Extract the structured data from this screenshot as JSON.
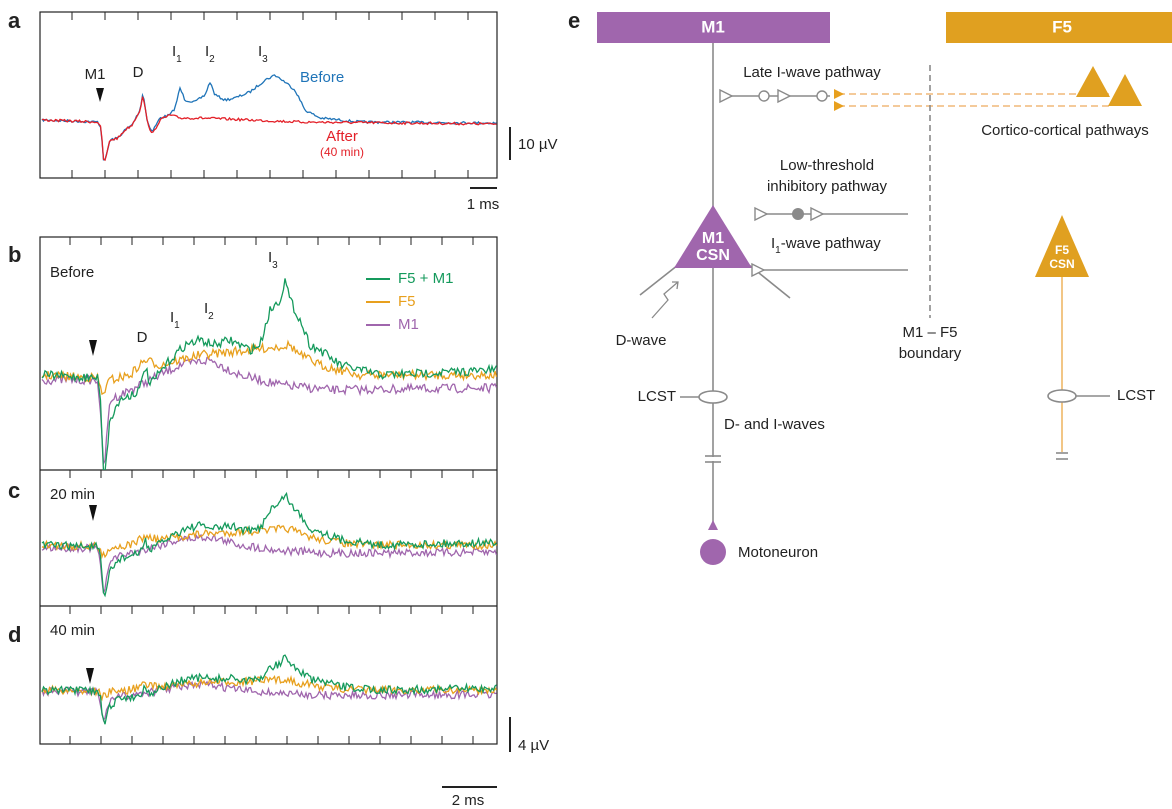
{
  "panels": [
    {
      "label": "a",
      "stimulus": "M1",
      "peaks": [
        {
          "text": "D"
        },
        {
          "text": "I",
          "sub": "1"
        },
        {
          "text": "I",
          "sub": "2"
        },
        {
          "text": "I",
          "sub": "3"
        }
      ],
      "traces": [
        {
          "name": "Before",
          "color": "#1f74b8"
        },
        {
          "name": "After",
          "note": "(40 min)",
          "color": "#e32028"
        }
      ],
      "scale_y": "10 µV",
      "scale_x": "1 ms"
    },
    {
      "label": "b",
      "condition": "Before",
      "peaks": [
        {
          "text": "D"
        },
        {
          "text": "I",
          "sub": "1"
        },
        {
          "text": "I",
          "sub": "2"
        },
        {
          "text": "I",
          "sub": "3"
        }
      ],
      "legend": [
        {
          "name": "F5 + M1",
          "color": "#159a5c"
        },
        {
          "name": "F5",
          "color": "#e8a01e"
        },
        {
          "name": "M1",
          "color": "#a066ad"
        }
      ]
    },
    {
      "label": "c",
      "condition": "20 min"
    },
    {
      "label": "d",
      "condition": "40 min",
      "scale_y": "4 µV",
      "scale_x": "2 ms"
    },
    {
      "label": "e",
      "regions": [
        "M1",
        "F5"
      ],
      "neurons": [
        {
          "line1": "M1",
          "line2": "CSN"
        },
        {
          "line1": "F5",
          "line2": "CSN"
        }
      ],
      "late_pathway": "Late I-wave pathway",
      "cortico": "Cortico-cortical pathways",
      "inhibitory": [
        "Low-threshold",
        "inhibitory pathway"
      ],
      "i1_pathway": {
        "text": "I",
        "sub": "1",
        "rest": "-wave pathway"
      },
      "boundary": [
        "M1 – F5",
        "boundary"
      ],
      "dwave": "D-wave",
      "lcst": [
        "LCST",
        "LCST"
      ],
      "waves": "D- and I-waves",
      "motoneuron": "Motoneuron"
    }
  ]
}
